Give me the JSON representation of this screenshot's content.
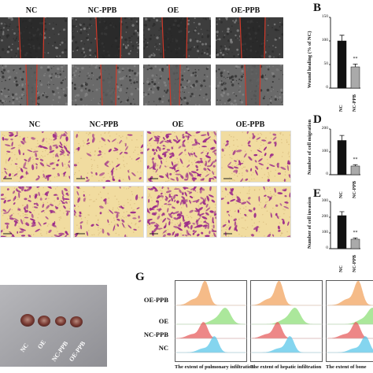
{
  "figure": {
    "wound_columns": [
      "NC",
      "NC-PPB",
      "OE",
      "OE-PPB"
    ],
    "transwell_columns": [
      "NC",
      "NC-PPB",
      "OE",
      "OE-PPB"
    ],
    "panels": {
      "B": "B",
      "D": "D",
      "E": "E",
      "G": "G"
    },
    "tumor_labels": [
      "NC",
      "OE",
      "NC-PPB",
      "OE-PPB"
    ],
    "flow_rows": [
      "OE-PPB",
      "OE",
      "NC-PPB",
      "NC"
    ],
    "flow_captions": [
      "The extent of pulmonary infiltration",
      "The extent of hepatic infiltration",
      "The extent of bone"
    ]
  },
  "chart_data": [
    {
      "type": "bar",
      "panel": "B",
      "categories": [
        "NC",
        "NC-PPB"
      ],
      "values": [
        100,
        45
      ],
      "errors": [
        12,
        6
      ],
      "ylabel": "Wound healing (% of NC)",
      "yticks": [
        "0",
        "50",
        "100",
        "150"
      ],
      "ylim": [
        0,
        150
      ],
      "significance": [
        "",
        "**"
      ],
      "colors": [
        "#111111",
        "#aaaaaa"
      ]
    },
    {
      "type": "bar",
      "panel": "D",
      "categories": [
        "NC",
        "NC-PPB"
      ],
      "values": [
        150,
        38
      ],
      "errors": [
        22,
        6
      ],
      "ylabel": "Number of cell migration",
      "yticks": [
        "0",
        "100",
        "200"
      ],
      "ylim": [
        0,
        200
      ],
      "significance": [
        "",
        "**"
      ],
      "colors": [
        "#111111",
        "#aaaaaa"
      ]
    },
    {
      "type": "bar",
      "panel": "E",
      "categories": [
        "NC",
        "NC-PPB"
      ],
      "values": [
        210,
        60
      ],
      "errors": [
        25,
        8
      ],
      "ylabel": "Number of cell invasion",
      "yticks": [
        "0",
        "100",
        "200",
        "300"
      ],
      "ylim": [
        0,
        300
      ],
      "significance": [
        "",
        "**"
      ],
      "colors": [
        "#111111",
        "#aaaaaa"
      ]
    }
  ],
  "colors": {
    "wound_bg": "#4a4a4a",
    "wound_line": "#d23a2a",
    "stain_bg": "#f1dca0",
    "stain_cell": "#9b2b8a",
    "flow_orange": "#f2a561",
    "flow_green": "#8fe07a",
    "flow_red": "#e86060",
    "flow_blue": "#5cc8ea",
    "tumor_bg": "#a8a8ac"
  }
}
